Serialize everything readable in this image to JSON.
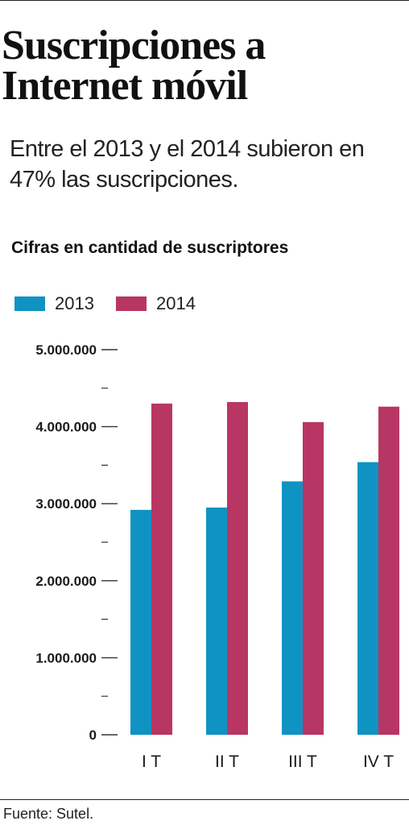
{
  "title": "Suscripciones a Internet móvil",
  "subtitle": "Entre el 2013 y el 2014 subieron en 47% las suscripciones.",
  "chart_heading": "Cifras en cantidad de suscriptores",
  "source": "Fuente: Sutel.",
  "colors": {
    "series_2013": "#0f93c3",
    "series_2014": "#b83663"
  },
  "chart_data": {
    "type": "bar",
    "title": "Cifras en cantidad de suscriptores",
    "categories": [
      "I T",
      "II T",
      "III T",
      "IV T"
    ],
    "series": [
      {
        "name": "2013",
        "values": [
          2920000,
          2950000,
          3290000,
          3540000
        ]
      },
      {
        "name": "2014",
        "values": [
          4300000,
          4320000,
          4060000,
          4260000
        ]
      }
    ],
    "ylim": [
      0,
      5000000
    ],
    "major_ticks": [
      0,
      1000000,
      2000000,
      3000000,
      4000000,
      5000000
    ],
    "tick_labels": [
      "0",
      "1.000.000",
      "2.000.000",
      "3.000.000",
      "4.000.000",
      "5.000.000"
    ],
    "minor_ticks": [
      500000,
      1500000,
      2500000,
      3500000,
      4500000
    ],
    "xlabel": "",
    "ylabel": "",
    "grid": false,
    "legend_position": "top-left"
  }
}
